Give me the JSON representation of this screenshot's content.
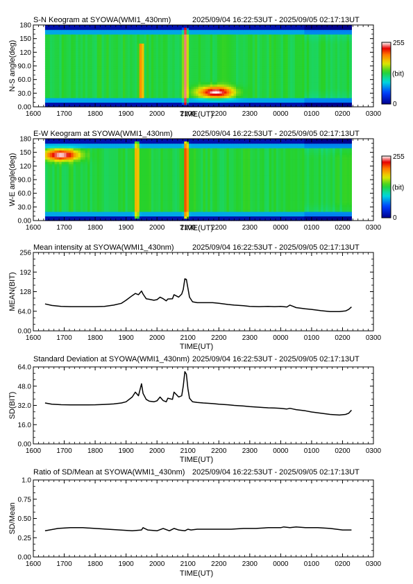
{
  "colors": {
    "background": "#ffffff",
    "line": "#000000"
  },
  "time_ticks": [
    "1600",
    "1700",
    "1800",
    "1900",
    "2000",
    "2100",
    "2200",
    "2300",
    "0000",
    "0100",
    "0200",
    "0300"
  ],
  "xlabel": "TIME(UT)",
  "chart_data": [
    {
      "type": "heatmap",
      "title": "S-N Keogram at SYOWA(WMI1_430nm)",
      "time_range": "2025/09/04 16:22:53UT - 2025/09/05 02:17:13UT",
      "ylabel": "N-S angle(deg)",
      "xlabel": "TIME(UT)",
      "xlim": [
        16.0,
        27.0
      ],
      "data_x_range": [
        16.38,
        26.29
      ],
      "ylim": [
        0,
        180
      ],
      "yticks": [
        "0.00",
        "30.0",
        "60.0",
        "90.0",
        "120",
        "150",
        "180"
      ],
      "colorbar": {
        "min": "0",
        "max": "255",
        "unit": "(bit)"
      },
      "features": [
        {
          "kind": "bright_column",
          "x": 19.5,
          "y_range": [
            20,
            140
          ],
          "level": 0.9
        },
        {
          "kind": "bright_column",
          "x": 20.92,
          "y_range": [
            5,
            175
          ],
          "level": 1.0
        },
        {
          "kind": "bright_blob",
          "x": 21.9,
          "y": 33,
          "level": 1.0
        }
      ]
    },
    {
      "type": "heatmap",
      "title": "E-W Keogram at SYOWA(WMI1_430nm)",
      "time_range": "2025/09/04 16:22:53UT - 2025/09/05 02:17:13UT",
      "ylabel": "W-E angle(deg)",
      "xlabel": "TIME(UT)",
      "xlim": [
        16.0,
        27.0
      ],
      "data_x_range": [
        16.38,
        26.29
      ],
      "ylim": [
        0,
        180
      ],
      "yticks": [
        "0.00",
        "30.0",
        "60.0",
        "90.0",
        "120",
        "150",
        "180"
      ],
      "colorbar": {
        "min": "0",
        "max": "255",
        "unit": "(bit)"
      },
      "features": [
        {
          "kind": "bright_blob",
          "x": 16.9,
          "y": 145,
          "level": 1.0
        },
        {
          "kind": "bright_column",
          "x": 19.35,
          "y_range": [
            5,
            175
          ],
          "level": 0.85
        },
        {
          "kind": "bright_column",
          "x": 20.95,
          "y_range": [
            5,
            175
          ],
          "level": 1.0
        }
      ]
    },
    {
      "type": "line",
      "title": "Mean intensity at SYOWA(WMI1_430nm)",
      "time_range": "2025/09/04 16:22:53UT - 2025/09/05 02:17:13UT",
      "ylabel": "MEAN(BIT)",
      "xlabel": "TIME(UT)",
      "xlim": [
        16.0,
        27.0
      ],
      "ylim": [
        0,
        256
      ],
      "yticks": [
        "0.00",
        "64.0",
        "128",
        "192",
        "256"
      ],
      "series": [
        {
          "x": [
            16.38,
            16.6,
            16.9,
            17.2,
            17.6,
            18.0,
            18.3,
            18.6,
            18.85,
            19.0,
            19.2,
            19.3,
            19.4,
            19.5,
            19.55,
            19.65,
            19.75,
            19.9,
            20.0,
            20.1,
            20.2,
            20.3,
            20.35,
            20.5,
            20.55,
            20.7,
            20.8,
            20.85,
            20.9,
            20.95,
            21.0,
            21.05,
            21.15,
            21.3,
            21.5,
            21.8,
            22.0,
            22.3,
            22.5,
            22.8,
            23.0,
            23.3,
            23.6,
            23.8,
            24.0,
            24.2,
            24.3,
            24.4,
            24.5,
            24.8,
            25.0,
            25.3,
            25.6,
            25.9,
            26.1,
            26.2,
            26.29
          ],
          "y": [
            88,
            83,
            80,
            79,
            79,
            79,
            80,
            84,
            90,
            100,
            115,
            122,
            118,
            130,
            120,
            105,
            103,
            100,
            102,
            110,
            105,
            98,
            104,
            105,
            118,
            110,
            120,
            135,
            170,
            168,
            140,
            110,
            95,
            92,
            92,
            92,
            90,
            86,
            84,
            82,
            80,
            79,
            80,
            79,
            80,
            78,
            84,
            80,
            76,
            72,
            70,
            66,
            63,
            63,
            65,
            70,
            78
          ]
        }
      ]
    },
    {
      "type": "line",
      "title": "Standard Deviation at SYOWA(WMI1_430nm)",
      "time_range": "2025/09/04 16:22:53UT - 2025/09/05 02:17:13UT",
      "ylabel": "SD(BIT)",
      "xlabel": "TIME(UT)",
      "xlim": [
        16.0,
        27.0
      ],
      "ylim": [
        0,
        64
      ],
      "yticks": [
        "0.00",
        "16.0",
        "32.0",
        "48.0",
        "64.0"
      ],
      "series": [
        {
          "x": [
            16.38,
            16.6,
            16.9,
            17.2,
            17.6,
            18.0,
            18.3,
            18.6,
            18.85,
            19.0,
            19.2,
            19.3,
            19.4,
            19.5,
            19.55,
            19.65,
            19.75,
            19.9,
            20.0,
            20.1,
            20.2,
            20.3,
            20.35,
            20.5,
            20.55,
            20.7,
            20.8,
            20.85,
            20.9,
            20.95,
            21.0,
            21.05,
            21.15,
            21.3,
            21.5,
            21.8,
            22.0,
            22.3,
            22.5,
            22.8,
            23.0,
            23.3,
            23.6,
            23.8,
            24.0,
            24.2,
            24.3,
            24.4,
            24.5,
            24.8,
            25.0,
            25.3,
            25.6,
            25.9,
            26.1,
            26.2,
            26.29
          ],
          "y": [
            34,
            33,
            32.6,
            32.4,
            32.4,
            32.5,
            32.8,
            33.2,
            34,
            35,
            39,
            43,
            40,
            50,
            42,
            37,
            35.5,
            35,
            35.8,
            39,
            36,
            35,
            38,
            37,
            43,
            39,
            40,
            48,
            60,
            58,
            46,
            38,
            35,
            34.5,
            34,
            33.5,
            33,
            32.5,
            32,
            31.5,
            31,
            30.5,
            30,
            29.8,
            29.5,
            29,
            29.6,
            29,
            28.5,
            27.5,
            26.5,
            25.5,
            24.5,
            24,
            24.5,
            25.5,
            28
          ]
        }
      ]
    },
    {
      "type": "line",
      "title": "Ratio of SD/Mean at SYOWA(WMI1_430nm)",
      "time_range": "2025/09/04 16:22:53UT - 2025/09/05 02:17:13UT",
      "ylabel": "SD/Mean",
      "xlabel": "TIME(UT)",
      "xlim": [
        16.0,
        27.0
      ],
      "ylim": [
        0,
        1.0
      ],
      "yticks": [
        "0.00",
        "0.25",
        "0.50",
        "0.75",
        "1.0"
      ],
      "series": [
        {
          "x": [
            16.38,
            16.8,
            17.2,
            17.6,
            18.0,
            18.4,
            18.8,
            19.2,
            19.5,
            19.55,
            19.7,
            20.0,
            20.2,
            20.4,
            20.55,
            20.7,
            20.9,
            21.0,
            21.1,
            21.3,
            21.6,
            22.0,
            22.4,
            22.8,
            23.2,
            23.6,
            24.0,
            24.1,
            24.3,
            24.5,
            24.8,
            25.2,
            25.6,
            26.0,
            26.29
          ],
          "y": [
            0.34,
            0.37,
            0.38,
            0.38,
            0.37,
            0.36,
            0.35,
            0.34,
            0.35,
            0.38,
            0.35,
            0.34,
            0.37,
            0.34,
            0.37,
            0.35,
            0.34,
            0.36,
            0.35,
            0.36,
            0.36,
            0.36,
            0.36,
            0.37,
            0.37,
            0.38,
            0.38,
            0.39,
            0.38,
            0.39,
            0.38,
            0.38,
            0.37,
            0.35,
            0.35
          ]
        }
      ]
    }
  ]
}
